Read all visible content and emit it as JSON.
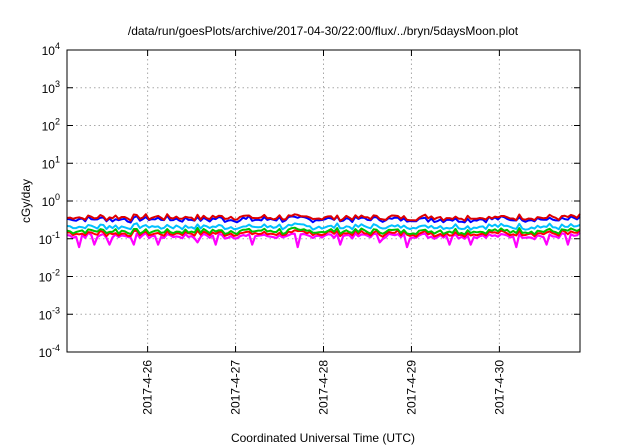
{
  "chart_data": {
    "type": "line",
    "title": "/data/run/goesPlots/archive/2017-04-30/22:00/flux/../bryn/5daysMoon.plot",
    "xlabel": "Coordinated Universal Time (UTC)",
    "ylabel": "cGy/day",
    "yscale": "log",
    "ylim": [
      0.0001,
      10000
    ],
    "xlim": [
      "2017-04-25T02:00",
      "2017-04-30T22:00"
    ],
    "grid": true,
    "legend": "none",
    "y_ticks": [
      {
        "base": "10",
        "exp": "-4",
        "value": 0.0001
      },
      {
        "base": "10",
        "exp": "-3",
        "value": 0.001
      },
      {
        "base": "10",
        "exp": "-2",
        "value": 0.01
      },
      {
        "base": "10",
        "exp": "-1",
        "value": 0.1
      },
      {
        "base": "10",
        "exp": "0",
        "value": 1
      },
      {
        "base": "10",
        "exp": "1",
        "value": 10
      },
      {
        "base": "10",
        "exp": "2",
        "value": 100
      },
      {
        "base": "10",
        "exp": "3",
        "value": 1000
      },
      {
        "base": "10",
        "exp": "4",
        "value": 10000
      }
    ],
    "x_ticks": [
      {
        "label": "2017-4-26",
        "value": "2017-04-26T00:00"
      },
      {
        "label": "2017-4-27",
        "value": "2017-04-27T00:00"
      },
      {
        "label": "2017-4-28",
        "value": "2017-04-28T00:00"
      },
      {
        "label": "2017-4-29",
        "value": "2017-04-29T00:00"
      },
      {
        "label": "2017-4-30",
        "value": "2017-04-30T00:00"
      }
    ],
    "series": [
      {
        "color": "#ff00ff",
        "typical": 0.12,
        "dips": [
          0.06,
          0.07,
          0.07,
          0.08
        ]
      },
      {
        "color": "#ff0000",
        "typical": 0.14
      },
      {
        "color": "#00c000",
        "typical": 0.16
      },
      {
        "color": "#00c0ff",
        "typical": 0.21
      },
      {
        "color": "#0000ff",
        "typical": 0.33
      },
      {
        "color": "#dd0000",
        "typical": 0.37
      }
    ]
  }
}
